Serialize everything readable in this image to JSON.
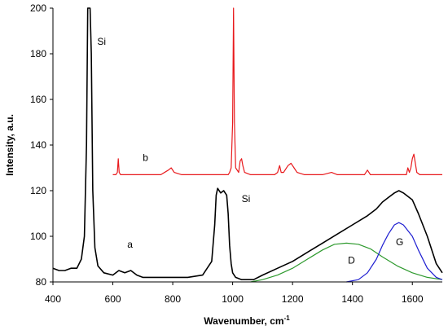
{
  "chart_data": {
    "type": "line",
    "xlabel": "Wavenumber, cm",
    "xlabel_superscript": "-1",
    "ylabel": "Intensity, a.u.",
    "xlim": [
      400,
      1700
    ],
    "ylim": [
      80,
      200
    ],
    "xticks": [
      400,
      600,
      800,
      1000,
      1200,
      1400,
      1600
    ],
    "yticks": [
      80,
      100,
      120,
      140,
      160,
      180,
      200
    ],
    "grid": false,
    "series": [
      {
        "name": "a",
        "color": "#000000",
        "x": [
          400,
          420,
          440,
          460,
          480,
          495,
          505,
          512,
          516,
          520,
          524,
          528,
          533,
          540,
          550,
          570,
          600,
          620,
          640,
          660,
          680,
          700,
          750,
          800,
          850,
          900,
          930,
          940,
          945,
          950,
          960,
          970,
          980,
          985,
          990,
          995,
          1000,
          1010,
          1030,
          1050,
          1070,
          1100,
          1150,
          1200,
          1250,
          1300,
          1350,
          1400,
          1450,
          1480,
          1500,
          1520,
          1540,
          1555,
          1570,
          1600,
          1620,
          1650,
          1680,
          1700
        ],
        "y": [
          86,
          85,
          85,
          86,
          86,
          90,
          100,
          140,
          200,
          200,
          200,
          180,
          120,
          95,
          87,
          84,
          83,
          85,
          84,
          85,
          83,
          82,
          82,
          82,
          82,
          83,
          89,
          105,
          118,
          121,
          119,
          120,
          118,
          110,
          96,
          88,
          84,
          82,
          81,
          81,
          81,
          83,
          86,
          89,
          93,
          97,
          101,
          105,
          109,
          112,
          115,
          117,
          119,
          120,
          119,
          116,
          110,
          100,
          88,
          84
        ]
      },
      {
        "name": "b",
        "color": "#e8191c",
        "x": [
          600,
          610,
          615,
          618,
          621,
          626,
          640,
          700,
          760,
          785,
          795,
          805,
          830,
          900,
          960,
          985,
          990,
          995,
          1000,
          1003,
          1006,
          1010,
          1020,
          1025,
          1030,
          1034,
          1040,
          1060,
          1100,
          1140,
          1150,
          1157,
          1162,
          1170,
          1185,
          1195,
          1205,
          1215,
          1240,
          1300,
          1330,
          1350,
          1400,
          1440,
          1450,
          1460,
          1500,
          1560,
          1580,
          1585,
          1590,
          1595,
          1600,
          1605,
          1610,
          1615,
          1625,
          1650,
          1700
        ],
        "y": [
          127,
          127,
          128,
          134,
          128,
          127,
          127,
          127,
          127,
          129,
          130,
          128,
          127,
          127,
          127,
          127,
          128,
          130,
          150,
          200,
          150,
          130,
          128,
          133,
          134,
          131,
          128,
          127,
          127,
          127,
          128,
          131,
          128,
          128,
          131,
          132,
          130,
          128,
          127,
          127,
          128,
          127,
          127,
          127,
          129,
          127,
          127,
          127,
          127,
          130,
          128,
          130,
          134,
          136,
          132,
          128,
          127,
          127,
          127
        ]
      },
      {
        "name": "D",
        "color": "#2e9a2e",
        "x": [
          1060,
          1100,
          1150,
          1200,
          1250,
          1300,
          1340,
          1380,
          1420,
          1460,
          1500,
          1550,
          1600,
          1650,
          1700
        ],
        "y": [
          80,
          81,
          83,
          86,
          90,
          94,
          96.5,
          97,
          96.5,
          94.5,
          91,
          87,
          84,
          82,
          81
        ]
      },
      {
        "name": "G",
        "color": "#1f1fd1",
        "x": [
          1380,
          1420,
          1450,
          1480,
          1500,
          1520,
          1540,
          1555,
          1570,
          1600,
          1620,
          1650,
          1680,
          1700
        ],
        "y": [
          80,
          81,
          84,
          90,
          96,
          101,
          105,
          106,
          105,
          100,
          94,
          86,
          82,
          81
        ]
      }
    ],
    "annotations": [
      {
        "text": "Si",
        "x": 548,
        "y": 184
      },
      {
        "text": "b",
        "x": 700,
        "y": 133
      },
      {
        "text": "Si",
        "x": 1030,
        "y": 115
      },
      {
        "text": "a",
        "x": 648,
        "y": 95
      },
      {
        "text": "D",
        "x": 1385,
        "y": 88
      },
      {
        "text": "G",
        "x": 1545,
        "y": 96
      }
    ]
  }
}
